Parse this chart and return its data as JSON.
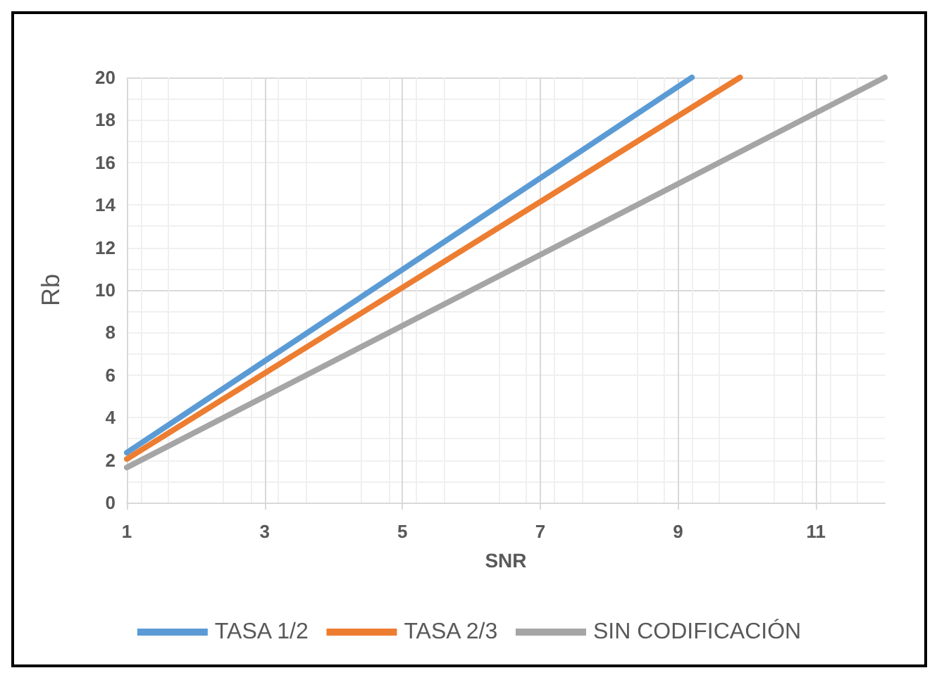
{
  "chart_data": {
    "type": "line",
    "xlabel": "SNR",
    "ylabel": "Rb",
    "series": [
      {
        "name": "TASA 1/2",
        "color": "#5b9bd5",
        "x": [
          1,
          9.2
        ],
        "values": [
          2.35,
          20
        ]
      },
      {
        "name": "TASA 2/3",
        "color": "#ed7d31",
        "x": [
          1,
          9.9
        ],
        "values": [
          2.05,
          20
        ]
      },
      {
        "name": "SIN CODIFICACIÓN",
        "color": "#a5a5a5",
        "x": [
          1,
          12
        ],
        "values": [
          1.65,
          20
        ]
      }
    ],
    "xlim": [
      1,
      12
    ],
    "xticks": [
      1,
      3,
      5,
      7,
      9,
      11
    ],
    "ylim": [
      0,
      20
    ],
    "yticks": [
      0,
      2,
      4,
      6,
      8,
      10,
      12,
      14,
      16,
      18,
      20
    ],
    "grid": true,
    "legend": "bottom",
    "marker": "none",
    "line_style": "solid"
  }
}
